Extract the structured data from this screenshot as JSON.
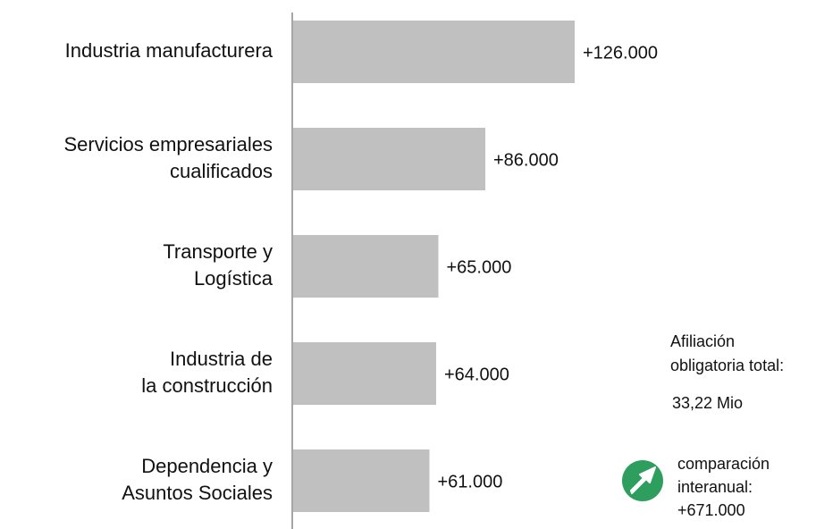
{
  "chart_data": {
    "type": "bar",
    "orientation": "horizontal",
    "color": "#c0c0c0",
    "categories": [
      [
        "Industria manufacturera"
      ],
      [
        "Servicios empresariales",
        "cualificados"
      ],
      [
        "Transporte y",
        "Logística"
      ],
      [
        "Industria de",
        "la construcción"
      ],
      [
        "Dependencia y",
        "Asuntos Sociales"
      ]
    ],
    "values": [
      126000,
      86000,
      65000,
      64000,
      61000
    ],
    "value_labels": [
      "+126.000",
      "+86.000",
      "+65.000",
      "+64.000",
      "+61.000"
    ],
    "annotations": {
      "total": {
        "label": [
          "Afiliación",
          "obligatoria total:"
        ],
        "value": "33,22 Mio",
        "icon_color": "#2e9e5e"
      },
      "change": {
        "label": [
          "comparación",
          "interanual:"
        ],
        "value": "+671.000",
        "icon_color": "#2e9e5e"
      }
    }
  }
}
